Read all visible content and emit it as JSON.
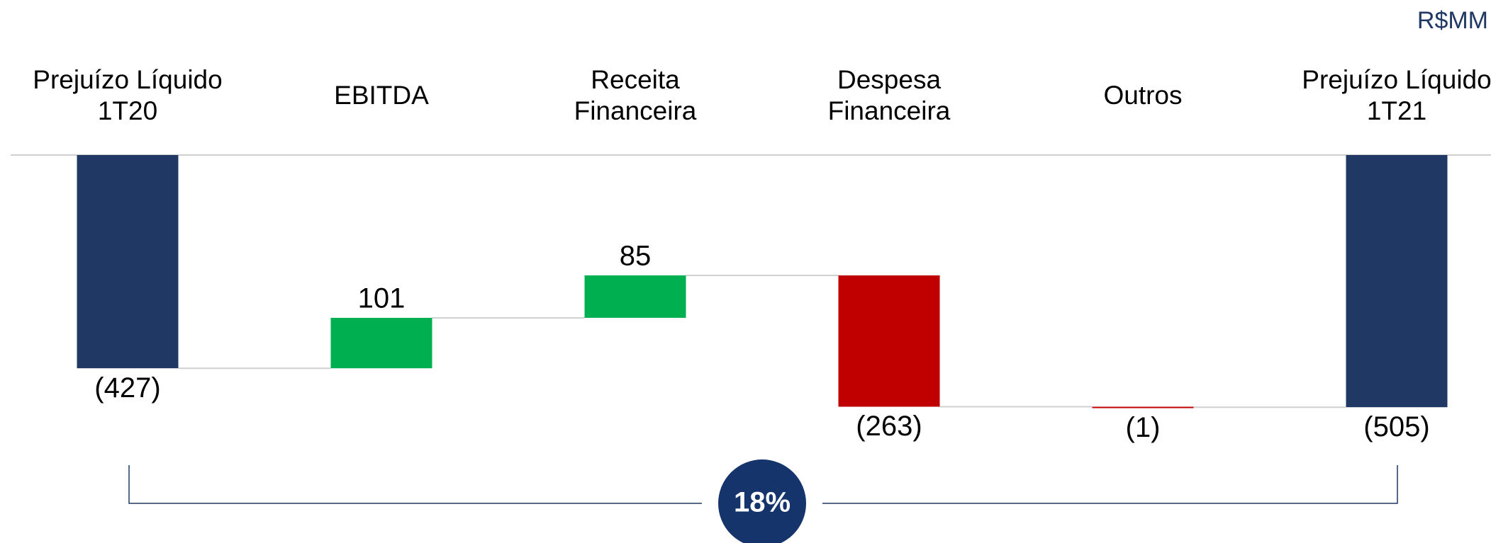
{
  "chart_data": {
    "type": "waterfall",
    "unit_label": "R$MM",
    "categories": [
      "Prejuízo Líquido 1T20",
      "EBITDA",
      "Receita Financeira",
      "Despesa Financeira",
      "Outros",
      "Prejuízo Líquido 1T21"
    ],
    "measures": [
      "absolute",
      "relative",
      "relative",
      "relative",
      "relative",
      "total"
    ],
    "values": [
      -427,
      101,
      85,
      -263,
      -1,
      -505
    ],
    "value_labels": [
      "(427)",
      "101",
      "85",
      "(263)",
      "(1)",
      "(505)"
    ],
    "colors": [
      "#203864",
      "#00b050",
      "#00b050",
      "#c00000",
      "#c00000",
      "#203864"
    ],
    "ylim": [
      -560,
      0
    ],
    "annotation": "18%"
  }
}
